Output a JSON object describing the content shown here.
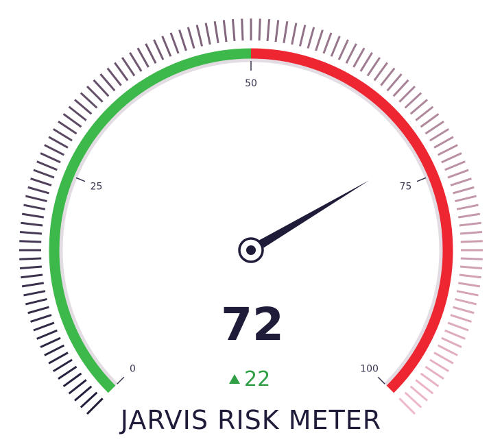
{
  "gauge": {
    "title": "JARVIS RISK METER",
    "value": 72,
    "value_text": "72",
    "delta": 22,
    "delta_text": "22",
    "delta_icon": "triangle-up-icon",
    "min": 0,
    "max": 100,
    "ticks": [
      {
        "value": 0,
        "label": "0"
      },
      {
        "value": 25,
        "label": "25"
      },
      {
        "value": 50,
        "label": "50"
      },
      {
        "value": 75,
        "label": "75"
      },
      {
        "value": 100,
        "label": "100"
      }
    ],
    "bands": [
      {
        "from": 0,
        "to": 50,
        "color": "#3db84a"
      },
      {
        "from": 50,
        "to": 100,
        "color": "#ee2631"
      }
    ],
    "colors": {
      "track": "#e3dde3",
      "needle": "#1f1c3a",
      "outer_ticks_start": "#1f1c3a",
      "outer_ticks_end": "#efb8c8",
      "delta": "#2f9e45"
    }
  }
}
